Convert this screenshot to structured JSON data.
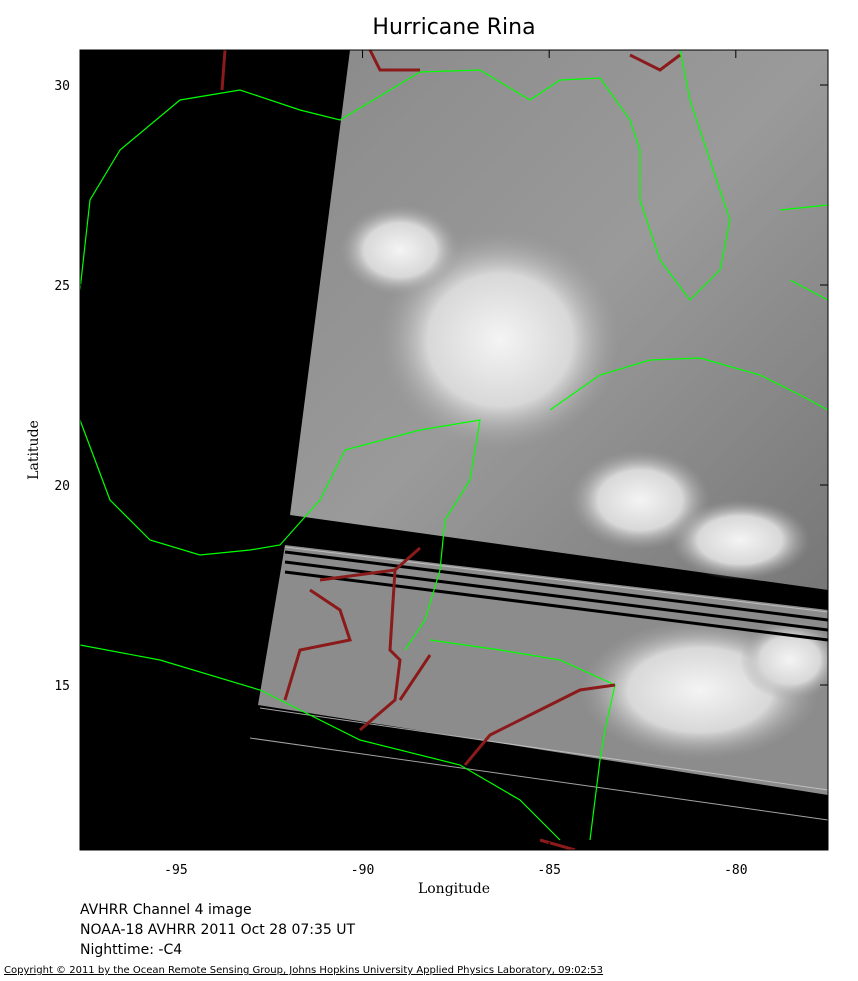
{
  "map": {
    "title": "Hurricane Rina",
    "x_label": "Longitude",
    "y_label": "Latitude",
    "xlim": [
      -97.57,
      -77.53
    ],
    "ylim": [
      10.875,
      30.875
    ],
    "xticks": [
      -95,
      -90,
      -85,
      -80
    ],
    "yticks": [
      15,
      20,
      25,
      30
    ]
  },
  "captions": [
    "AVHRR Channel 4 image",
    "NOAA-18 AVHRR 2011 Oct 28 07:35 UT",
    "Nighttime: -C4"
  ],
  "copyright": "Copyright © 2011 by the Ocean Remote Sensing Group, Johns Hopkins University Applied Physics Laboratory, 09:02:53"
}
